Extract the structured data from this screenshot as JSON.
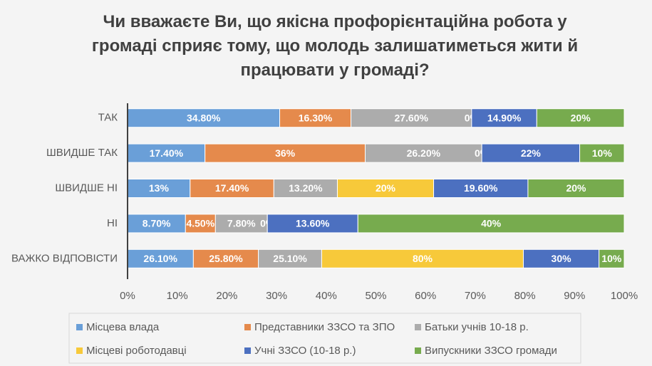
{
  "chart_data": {
    "type": "bar",
    "orientation": "horizontal",
    "stacking": "percent",
    "title": "Чи вважаєте Ви, що якісна профорієнтаційна робота у громаді сприяє тому, що молодь залишатиметься жити й працювати у громаді?",
    "categories": [
      "ТАК",
      "ШВИДШЕ ТАК",
      "ШВИДШЕ НІ",
      "НІ",
      "ВАЖКО ВІДПОВІСТИ"
    ],
    "series": [
      {
        "name": "Місцева влада",
        "color": "#6a9fd8",
        "values": [
          34.8,
          17.4,
          13,
          8.7,
          26.1
        ],
        "value_labels": [
          "34.80%",
          "17.40%",
          "13%",
          "8.70%",
          "26.10%"
        ]
      },
      {
        "name": "Представники ЗЗСО та ЗПО",
        "color": "#e58a4c",
        "values": [
          16.3,
          36,
          17.4,
          4.5,
          25.8
        ],
        "value_labels": [
          "16.30%",
          "36%",
          "17.40%",
          "4.50%",
          "25.80%"
        ]
      },
      {
        "name": "Батьки учнів 10-18 р.",
        "color": "#acacac",
        "values": [
          27.6,
          26.2,
          13.2,
          7.8,
          25.1
        ],
        "value_labels": [
          "27.60%",
          "26.20%",
          "13.20%",
          "7.80%",
          "25.10%"
        ]
      },
      {
        "name": "Місцеві роботодавці",
        "color": "#f7c93a",
        "values": [
          0,
          0,
          20,
          0,
          80
        ],
        "value_labels": [
          "0%",
          "0%",
          "20%",
          "0%",
          "80%"
        ]
      },
      {
        "name": "Учні ЗЗСО (10-18 р.)",
        "color": "#4c70c0",
        "values": [
          14.9,
          22,
          19.6,
          13.6,
          30
        ],
        "value_labels": [
          "14.90%",
          "22%",
          "19.60%",
          "13.60%",
          "30%"
        ]
      },
      {
        "name": "Випускники ЗЗСО громади",
        "color": "#77ab4e",
        "values": [
          20,
          10,
          20,
          40,
          10
        ],
        "value_labels": [
          "20%",
          "10%",
          "20%",
          "40%",
          "10%"
        ]
      }
    ],
    "xlim": [
      0,
      100
    ],
    "xticks": [
      {
        "value": 0,
        "label": "0%"
      },
      {
        "value": 10,
        "label": "10%"
      },
      {
        "value": 20,
        "label": "20%"
      },
      {
        "value": 30,
        "label": "30%"
      },
      {
        "value": 40,
        "label": "40%"
      },
      {
        "value": 50,
        "label": "50%"
      },
      {
        "value": 60,
        "label": "60%"
      },
      {
        "value": 70,
        "label": "70%"
      },
      {
        "value": 80,
        "label": "80%"
      },
      {
        "value": 90,
        "label": "90%"
      },
      {
        "value": 100,
        "label": "100%"
      }
    ],
    "legend": "bottom"
  }
}
